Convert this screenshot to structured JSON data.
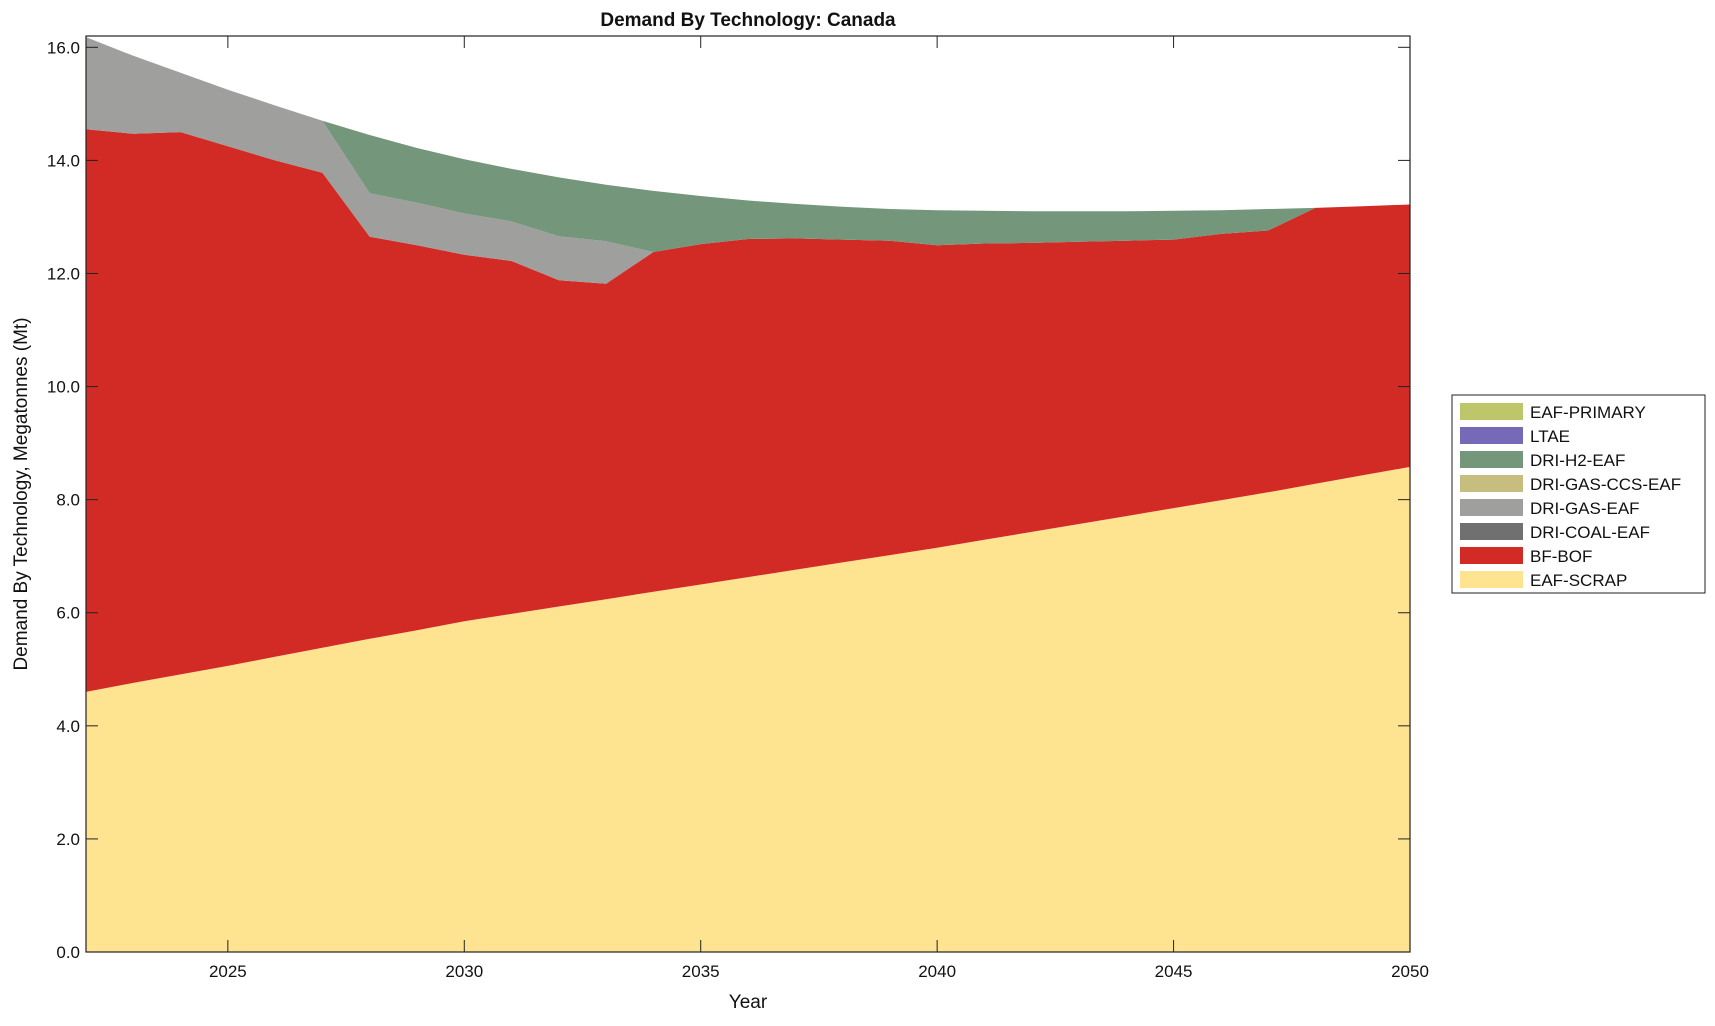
{
  "chart_data": {
    "type": "area",
    "stacked": true,
    "title": "Demand By Technology: Canada",
    "xlabel": "Year",
    "ylabel": "Demand By Technology, Megatonnes (Mt)",
    "xlim": [
      2022,
      2050
    ],
    "ylim": [
      0,
      16.2
    ],
    "xticks": [
      2025,
      2030,
      2035,
      2040,
      2045,
      2050
    ],
    "yticks": [
      "0.0",
      "2.0",
      "4.0",
      "6.0",
      "8.0",
      "10.0",
      "12.0",
      "14.0",
      "16.0"
    ],
    "grid": false,
    "legend_position": "right",
    "x": [
      2022,
      2023,
      2024,
      2025,
      2026,
      2027,
      2028,
      2029,
      2030,
      2031,
      2032,
      2033,
      2034,
      2035,
      2036,
      2037,
      2038,
      2039,
      2040,
      2041,
      2042,
      2043,
      2044,
      2045,
      2046,
      2047,
      2048,
      2049,
      2050
    ],
    "series": [
      {
        "name": "EAF-SCRAP",
        "color": "#FEE391",
        "values": [
          4.6,
          4.76,
          4.91,
          5.06,
          5.22,
          5.38,
          5.54,
          5.69,
          5.85,
          5.98,
          6.11,
          6.24,
          6.37,
          6.5,
          6.63,
          6.76,
          6.89,
          7.02,
          7.15,
          7.29,
          7.43,
          7.57,
          7.71,
          7.85,
          7.99,
          8.13,
          8.28,
          8.43,
          8.58
        ]
      },
      {
        "name": "BF-BOF",
        "color": "#D22B26",
        "values": [
          9.95,
          9.71,
          9.59,
          9.19,
          8.78,
          8.4,
          7.11,
          6.81,
          6.48,
          6.24,
          5.77,
          5.58,
          6.01,
          6.02,
          5.98,
          5.86,
          5.71,
          5.56,
          5.35,
          5.24,
          5.11,
          4.99,
          4.87,
          4.75,
          4.71,
          4.63,
          4.88,
          4.76,
          4.64
        ]
      },
      {
        "name": "DRI-COAL-EAF",
        "color": "#707070",
        "values": [
          0,
          0,
          0,
          0,
          0,
          0,
          0,
          0,
          0,
          0,
          0,
          0,
          0,
          0,
          0,
          0,
          0,
          0,
          0,
          0,
          0,
          0,
          0,
          0,
          0,
          0,
          0,
          0,
          0
        ]
      },
      {
        "name": "DRI-GAS-EAF",
        "color": "#9F9F9D",
        "values": [
          1.63,
          1.38,
          1.05,
          1.0,
          0.97,
          0.92,
          0.77,
          0.75,
          0.73,
          0.7,
          0.78,
          0.75,
          0,
          0,
          0,
          0,
          0,
          0,
          0,
          0,
          0,
          0,
          0,
          0,
          0,
          0,
          0,
          0,
          0
        ]
      },
      {
        "name": "DRI-GAS-CCS-EAF",
        "color": "#C6BD7E",
        "values": [
          0,
          0,
          0,
          0,
          0,
          0,
          0,
          0,
          0,
          0,
          0,
          0,
          0,
          0,
          0,
          0,
          0,
          0,
          0,
          0,
          0,
          0,
          0,
          0,
          0,
          0,
          0,
          0,
          0
        ]
      },
      {
        "name": "DRI-H2-EAF",
        "color": "#74977C",
        "values": [
          0,
          0,
          0,
          0,
          0,
          0,
          1.03,
          0.97,
          0.96,
          0.93,
          1.04,
          1.0,
          1.08,
          0.85,
          0.68,
          0.61,
          0.58,
          0.56,
          0.62,
          0.58,
          0.56,
          0.54,
          0.52,
          0.51,
          0.42,
          0.38,
          0,
          0,
          0
        ]
      },
      {
        "name": "LTAE",
        "color": "#7569B8",
        "values": [
          0,
          0,
          0,
          0,
          0,
          0,
          0,
          0,
          0,
          0,
          0,
          0,
          0,
          0,
          0,
          0,
          0,
          0,
          0,
          0,
          0,
          0,
          0,
          0,
          0,
          0,
          0,
          0,
          0
        ]
      },
      {
        "name": "EAF-PRIMARY",
        "color": "#BEC66A",
        "values": [
          0,
          0,
          0,
          0,
          0,
          0,
          0,
          0,
          0,
          0,
          0,
          0,
          0,
          0,
          0,
          0,
          0,
          0,
          0,
          0,
          0,
          0,
          0,
          0,
          0,
          0,
          0,
          0,
          0
        ]
      }
    ],
    "legend_order": [
      "EAF-PRIMARY",
      "LTAE",
      "DRI-H2-EAF",
      "DRI-GAS-CCS-EAF",
      "DRI-GAS-EAF",
      "DRI-COAL-EAF",
      "BF-BOF",
      "EAF-SCRAP"
    ]
  }
}
